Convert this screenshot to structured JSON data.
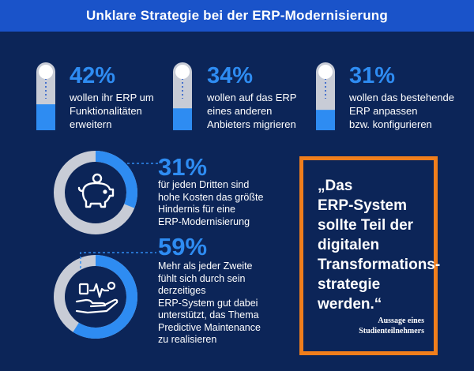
{
  "header": {
    "title": "Unklare Strategie bei der ERP-Modernisierung"
  },
  "chart_data": {
    "type": "infographic",
    "title": "Unklare Strategie bei der ERP-Modernisierung",
    "stats": [
      {
        "value": 42,
        "label": "42%",
        "line1": "wollen ihr ERP um",
        "line2": "Funktionalitäten",
        "line3": "erweitern"
      },
      {
        "value": 34,
        "label": "34%",
        "line1": "wollen auf das ERP",
        "line2": "eines anderen",
        "line3": "Anbieters migrieren"
      },
      {
        "value": 31,
        "label": "31%",
        "line1": "wollen das bestehende",
        "line2": "ERP anpassen",
        "line3": "bzw. konfigurieren"
      },
      {
        "value": 31,
        "label": "31%",
        "lines": [
          "für jeden Dritten sind",
          "hohe Kosten das größte",
          "Hindernis für eine",
          "ERP-Modernisierung"
        ]
      },
      {
        "value": 59,
        "label": "59%",
        "lines": [
          "Mehr als jeder Zweite",
          "fühlt sich durch sein",
          "derzeitiges",
          "ERP-System gut dabei",
          "unterstützt, das Thema",
          "Predictive Maintenance",
          "zu realisieren"
        ]
      }
    ]
  },
  "quote": {
    "lines": [
      "„Das",
      "ERP-System",
      "sollte Teil der",
      "digitalen",
      "Transformations-",
      "strategie",
      "werden.“"
    ],
    "attribution1": "Aussage eines",
    "attribution2": "Studienteilnehmers"
  },
  "colors": {
    "background": "#0c2558",
    "accent": "#2e8cf2",
    "title_bar": "#1a53c9",
    "quote_border": "#f07e1c",
    "ring_track": "#c8ccd6"
  },
  "icons": [
    "thermometer-icon",
    "piggy-bank-icon",
    "hand-analytics-icon"
  ]
}
